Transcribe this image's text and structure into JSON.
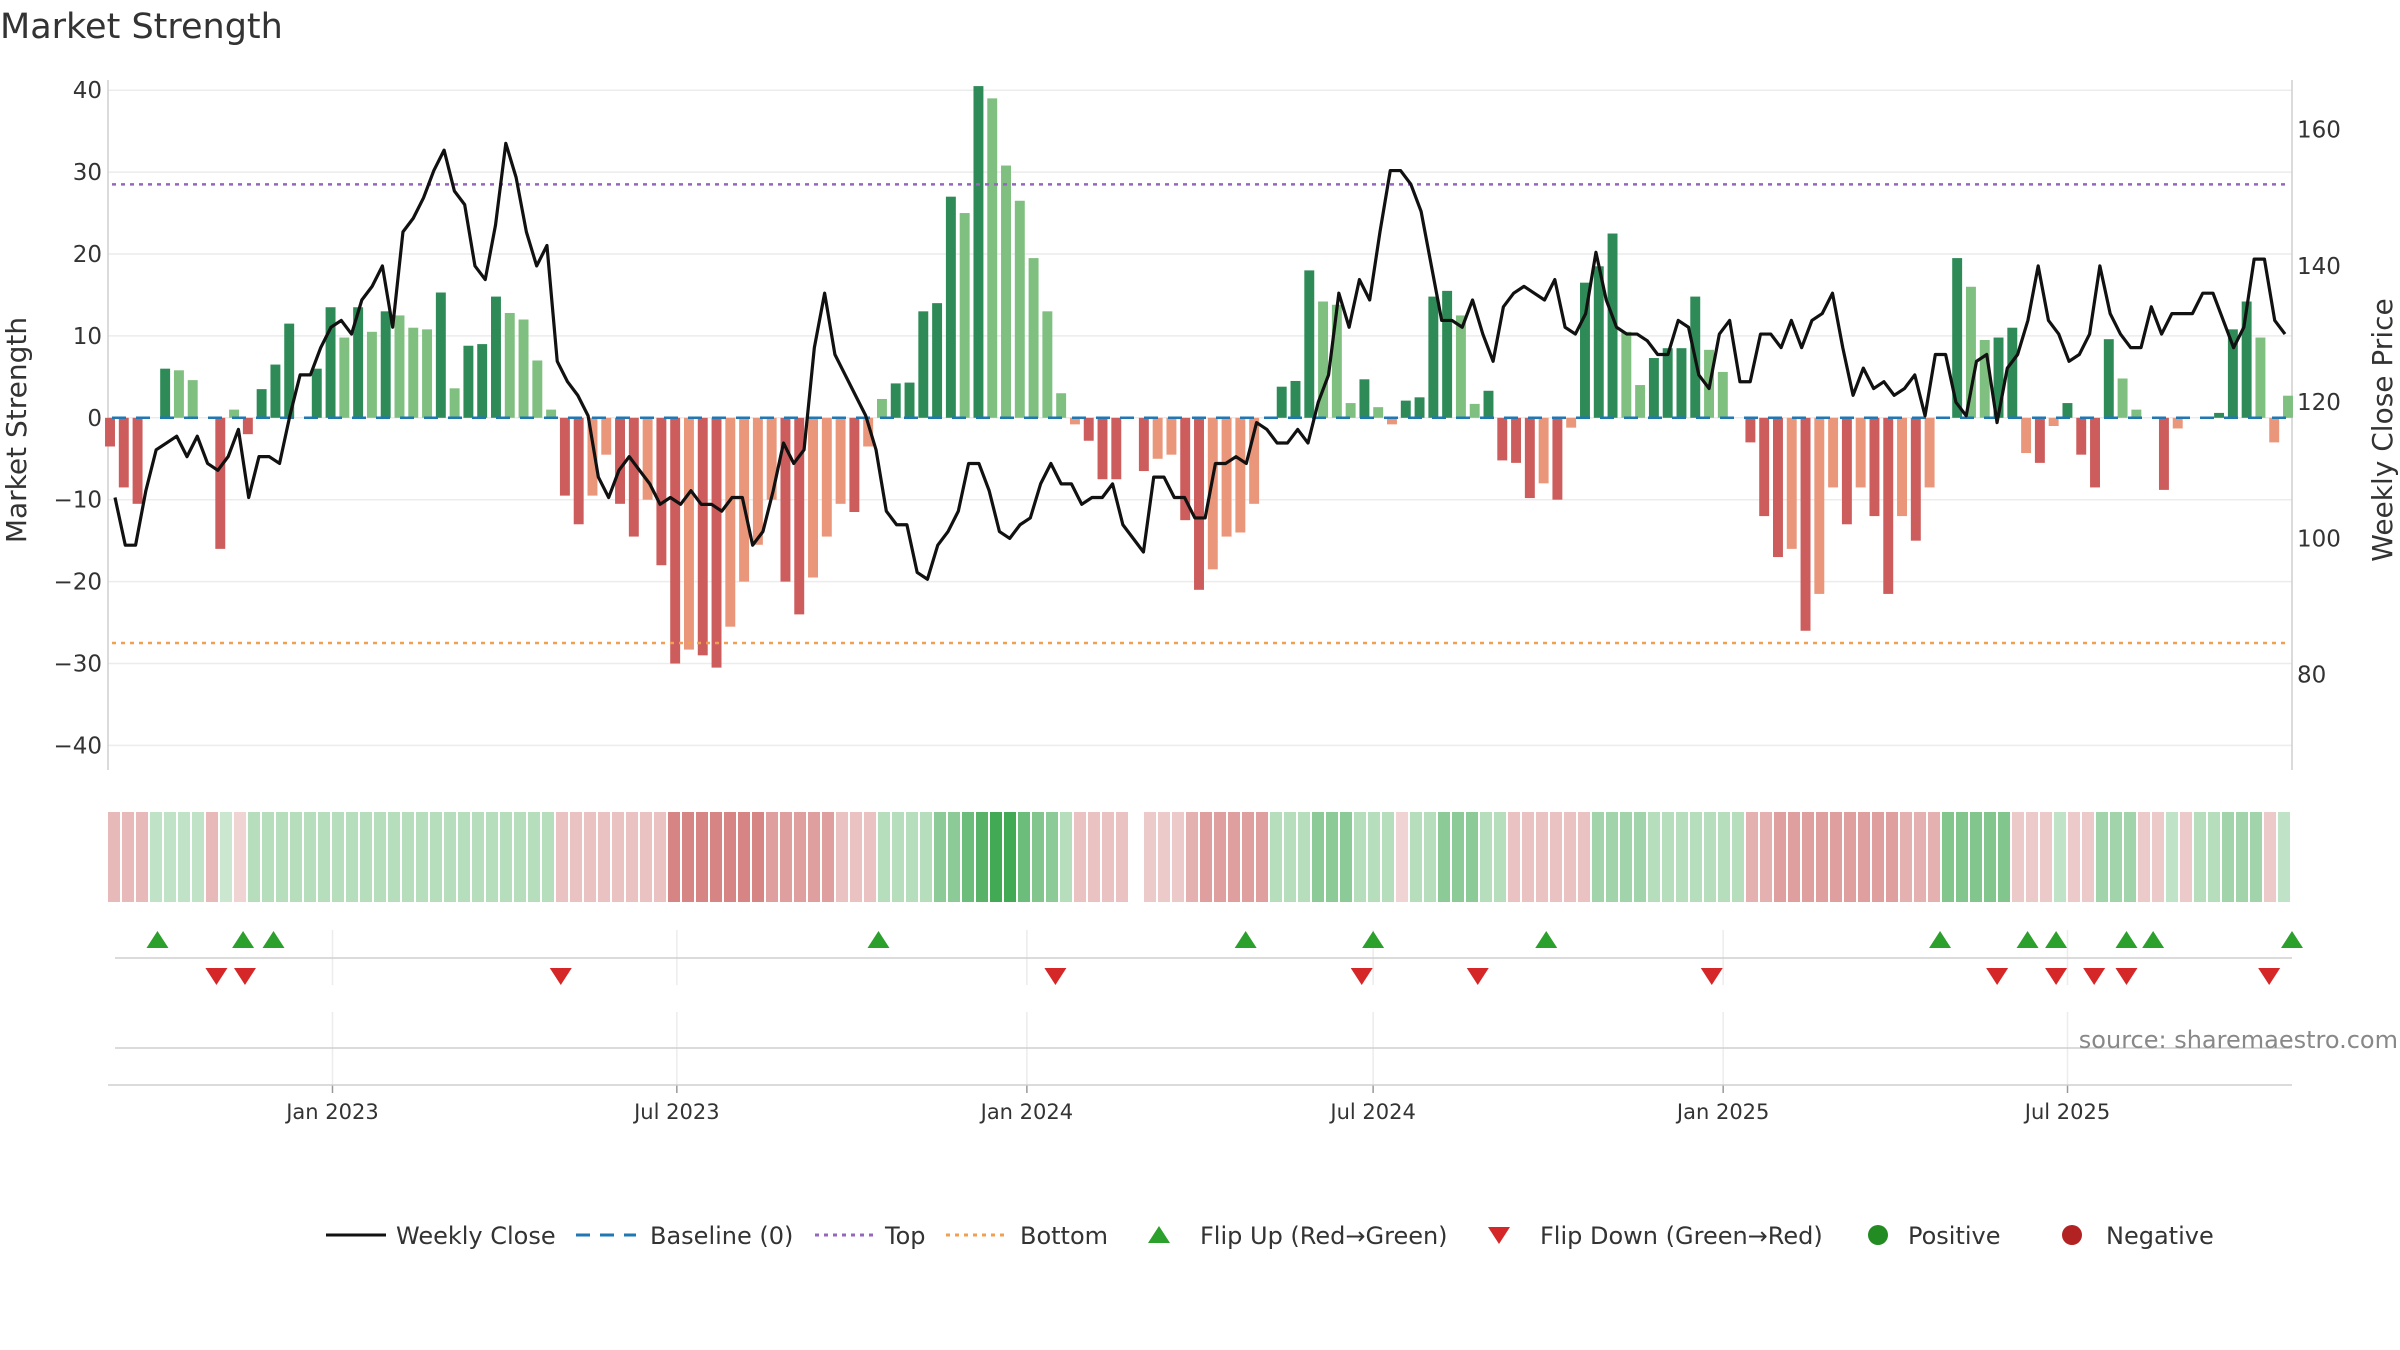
{
  "chart_data": {
    "type": "bar+line",
    "title": "Market Strength",
    "ylabel": "Market Strength",
    "y2label": "Weekly Close Price",
    "ylim": [
      -43,
      41
    ],
    "y2lim": [
      66,
      167
    ],
    "yticks": [
      40,
      30,
      20,
      10,
      0,
      -10,
      -20,
      -30,
      -40
    ],
    "yticks_labels": [
      "40",
      "30",
      "20",
      "10",
      "0",
      "−10",
      "−20",
      "−30",
      "−40"
    ],
    "y2ticks": [
      160,
      140,
      120,
      100,
      80
    ],
    "y2ticks_labels": [
      "160",
      "140",
      "120",
      "100",
      "80"
    ],
    "x_start": "2022-09-05",
    "x_end": "2025-10-27",
    "xticks": [
      {
        "label": "Jan 2023",
        "date": "2023-01-01"
      },
      {
        "label": "Jul 2023",
        "date": "2023-07-01"
      },
      {
        "label": "Jan 2024",
        "date": "2024-01-01"
      },
      {
        "label": "Jul 2024",
        "date": "2024-07-01"
      },
      {
        "label": "Jan 2025",
        "date": "2025-01-01"
      },
      {
        "label": "Jul 2025",
        "date": "2025-07-01"
      }
    ],
    "top_level": 28.5,
    "bottom_level": -27.5,
    "bar_colors": {
      "green_dark": "#2e8b57",
      "green_light": "#7fbf7f",
      "red_dark": "#cd5c5c",
      "red_light": "#e9967a"
    },
    "line_color": "#111111",
    "top_color": "#9467bd",
    "bottom_color": "#f0a050",
    "baseline_color": "#1f77b4",
    "strength_values": [
      -3.5,
      -8.5,
      -10.5,
      -0.3,
      6,
      5.8,
      4.6,
      -0.3,
      -16,
      1,
      -2,
      3.5,
      6.5,
      11.5,
      -0.3,
      6,
      13.5,
      9.8,
      13.5,
      10.5,
      13,
      12.5,
      11,
      10.8,
      15.3,
      3.6,
      8.8,
      9,
      14.8,
      12.8,
      12,
      7,
      1,
      -9.5,
      -13,
      -9.5,
      -4.5,
      -10.5,
      -14.5,
      -10,
      -18,
      -30,
      -28.3,
      -29,
      -30.5,
      -25.5,
      -20,
      -15.5,
      -10,
      -20,
      -24,
      -19.5,
      -14.5,
      -10.5,
      -11.5,
      -3.5,
      2.3,
      4.2,
      4.3,
      13,
      14,
      27,
      25,
      40.5,
      39,
      30.8,
      26.5,
      19.5,
      13,
      3,
      -0.8,
      -2.8,
      -7.5,
      -7.5,
      -0.3,
      -6.5,
      -5,
      -4.5,
      -12.5,
      -21,
      -18.5,
      -14.5,
      -14,
      -10.5,
      -0.3,
      3.8,
      4.5,
      18,
      14.2,
      13.8,
      1.8,
      4.7,
      1.3,
      -0.8,
      2.1,
      2.5,
      14.8,
      15.5,
      12.5,
      1.7,
      3.3,
      -5.2,
      -5.5,
      -9.8,
      -8,
      -10,
      -1.2,
      16.5,
      18.5,
      22.5,
      10.5,
      4,
      7.3,
      8.5,
      8.5,
      14.8,
      8.3,
      5.6,
      -0.3,
      -3,
      -12,
      -17,
      -16,
      -26,
      -21.5,
      -8.5,
      -13,
      -8.5,
      -12,
      -21.5,
      -12,
      -15,
      -8.5,
      -0.3,
      19.5,
      16,
      9.5,
      9.8,
      11,
      -4.3,
      -5.5,
      -1,
      1.8,
      -4.5,
      -8.5,
      9.6,
      4.8,
      1,
      -0.3,
      -8.8,
      -1.3,
      -0.3,
      -0.3,
      0.6,
      10.8,
      14.2,
      9.8,
      -3,
      2.7
    ],
    "weekly_close": [
      106,
      99,
      99,
      107,
      113,
      114,
      115,
      112,
      115,
      111,
      110,
      112,
      116,
      106,
      112,
      112,
      111,
      118,
      124,
      124,
      128,
      131,
      132,
      130,
      135,
      137,
      140,
      131,
      145,
      147,
      150,
      154,
      157,
      151,
      149,
      140,
      138,
      146,
      158,
      153,
      145,
      140,
      143,
      126,
      123,
      121,
      118,
      109,
      106,
      110,
      112,
      110,
      108,
      105,
      106,
      105,
      107,
      105,
      105,
      104,
      106,
      106,
      99,
      101,
      107,
      114,
      111,
      113,
      128,
      136,
      127,
      124,
      121,
      118,
      113,
      104,
      102,
      102,
      95,
      94,
      99,
      101,
      104,
      111,
      111,
      107,
      101,
      100,
      102,
      103,
      108,
      111,
      108,
      108,
      105,
      106,
      106,
      108,
      102,
      100,
      98,
      109,
      109,
      106,
      106,
      103,
      103,
      111,
      111,
      112,
      111,
      117,
      116,
      114,
      114,
      116,
      114,
      120,
      124,
      136,
      131,
      138,
      135,
      145,
      154,
      154,
      152,
      148,
      140,
      132,
      132,
      131,
      135,
      130,
      126,
      134,
      136,
      137,
      136,
      135,
      138,
      131,
      130,
      133,
      142,
      135,
      131,
      130,
      130,
      129,
      127,
      127,
      132,
      131,
      124,
      122,
      130,
      132,
      123,
      123,
      130,
      130,
      128,
      132,
      128,
      132,
      133,
      136,
      128,
      121,
      125,
      122,
      123,
      121,
      122,
      124,
      118,
      127,
      127,
      120,
      118,
      126,
      127,
      117,
      125,
      127,
      132,
      140,
      132,
      130,
      126,
      127,
      130,
      140,
      133,
      130,
      128,
      128,
      134,
      130,
      133,
      133,
      133,
      136,
      136,
      132,
      128,
      131,
      141,
      141,
      132,
      130
    ],
    "signal_strip": [
      -0.4,
      -0.4,
      -0.4,
      0.3,
      0.3,
      0.3,
      0.3,
      -0.4,
      0.25,
      -0.25,
      0.35,
      0.35,
      0.35,
      0.35,
      0.35,
      0.35,
      0.35,
      0.35,
      0.35,
      0.35,
      0.35,
      0.35,
      0.35,
      0.35,
      0.35,
      0.35,
      0.35,
      0.35,
      0.35,
      0.35,
      0.35,
      0.35,
      -0.35,
      -0.35,
      -0.35,
      -0.35,
      -0.35,
      -0.35,
      -0.35,
      -0.35,
      -0.7,
      -0.7,
      -0.7,
      -0.7,
      -0.7,
      -0.7,
      -0.7,
      -0.55,
      -0.55,
      -0.55,
      -0.55,
      -0.55,
      -0.35,
      -0.35,
      -0.35,
      0.35,
      0.35,
      0.35,
      0.35,
      0.55,
      0.55,
      0.7,
      0.8,
      0.9,
      0.9,
      0.7,
      0.6,
      0.55,
      0.35,
      -0.35,
      -0.35,
      -0.35,
      -0.35,
      null,
      -0.3,
      -0.3,
      -0.3,
      -0.45,
      -0.55,
      -0.55,
      -0.55,
      -0.55,
      -0.55,
      0.35,
      0.35,
      0.35,
      0.55,
      0.55,
      0.55,
      0.35,
      0.35,
      0.35,
      -0.25,
      0.35,
      0.35,
      0.55,
      0.55,
      0.55,
      0.35,
      0.35,
      -0.35,
      -0.35,
      -0.35,
      -0.35,
      -0.35,
      -0.35,
      0.45,
      0.45,
      0.45,
      0.45,
      0.35,
      0.35,
      0.35,
      0.35,
      0.35,
      0.35,
      0.35,
      -0.45,
      -0.45,
      -0.55,
      -0.55,
      -0.55,
      -0.55,
      -0.55,
      -0.55,
      -0.55,
      -0.55,
      -0.55,
      -0.45,
      -0.45,
      -0.45,
      0.6,
      0.6,
      0.6,
      0.6,
      0.6,
      -0.3,
      -0.3,
      -0.3,
      0.3,
      -0.3,
      -0.3,
      0.45,
      0.45,
      0.45,
      -0.3,
      -0.3,
      0.3,
      -0.3,
      0.35,
      0.35,
      0.45,
      0.45,
      0.45,
      -0.3,
      0.3
    ],
    "flip_up_dates": [
      "2022-10-01",
      "2022-11-15",
      "2022-12-01",
      "2023-10-15",
      "2024-04-25",
      "2024-07-01",
      "2024-09-30",
      "2025-04-25",
      "2025-06-10",
      "2025-06-25",
      "2025-08-01",
      "2025-08-15",
      "2025-10-27"
    ],
    "flip_down_dates": [
      "2022-11-01",
      "2022-11-16",
      "2023-05-01",
      "2024-01-16",
      "2024-06-25",
      "2024-08-25",
      "2024-12-26",
      "2025-05-25",
      "2025-06-25",
      "2025-07-15",
      "2025-08-01",
      "2025-10-15"
    ],
    "source_text": "source: sharemaestro.com",
    "legend": [
      {
        "label": "Weekly Close",
        "kind": "line"
      },
      {
        "label": "Baseline (0)",
        "kind": "dash"
      },
      {
        "label": "Top",
        "kind": "dot-purple"
      },
      {
        "label": "Bottom",
        "kind": "dot-orange"
      },
      {
        "label": "Flip Up (Red→Green)",
        "kind": "tri-up"
      },
      {
        "label": "Flip Down (Green→Red)",
        "kind": "tri-down"
      },
      {
        "label": "Positive",
        "kind": "circle-green"
      },
      {
        "label": "Negative",
        "kind": "circle-red"
      }
    ]
  }
}
